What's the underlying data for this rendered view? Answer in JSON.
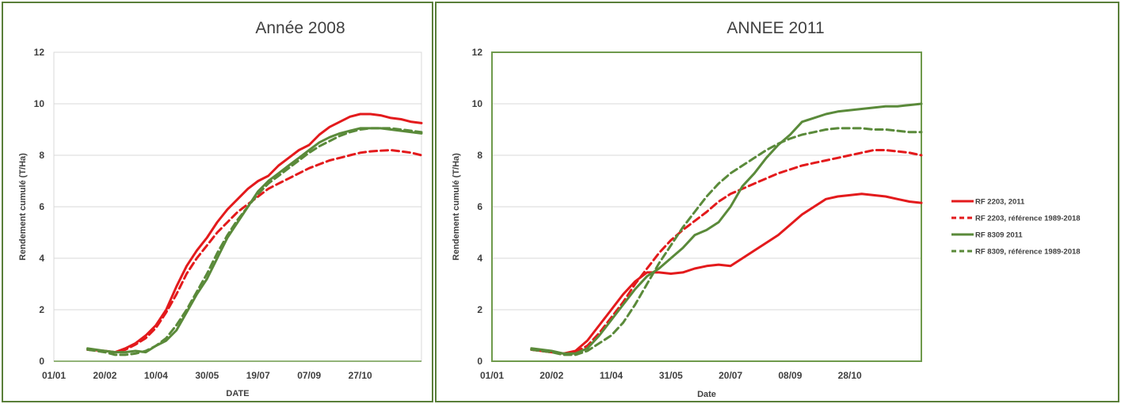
{
  "chart_data": [
    {
      "type": "line",
      "title": "Année 2008",
      "xlabel": "DATE",
      "ylabel": "Rendement cumulé (T/Ha)",
      "ylim": [
        0,
        12
      ],
      "yticks": [
        "0",
        "2",
        "4",
        "6",
        "8",
        "10",
        "12"
      ],
      "x_tick_labels": [
        "01/01",
        "20/02",
        "10/04",
        "30/05",
        "19/07",
        "07/09",
        "27/10"
      ],
      "x_tick_days": [
        0,
        50,
        100,
        150,
        200,
        250,
        300
      ],
      "xlim_days": [
        0,
        360
      ],
      "grid": true,
      "series": [
        {
          "color": "#e31a1c",
          "dash": false,
          "x": [
            33,
            50,
            60,
            70,
            80,
            90,
            100,
            110,
            120,
            130,
            140,
            150,
            160,
            170,
            180,
            190,
            200,
            210,
            220,
            230,
            240,
            250,
            260,
            270,
            280,
            290,
            300,
            310,
            320,
            330,
            340,
            350,
            360
          ],
          "y": [
            0.45,
            0.4,
            0.35,
            0.5,
            0.7,
            1.0,
            1.4,
            2.0,
            2.9,
            3.7,
            4.3,
            4.8,
            5.4,
            5.9,
            6.3,
            6.7,
            7.0,
            7.2,
            7.6,
            7.9,
            8.2,
            8.4,
            8.8,
            9.1,
            9.3,
            9.5,
            9.6,
            9.6,
            9.55,
            9.45,
            9.4,
            9.3,
            9.25
          ]
        },
        {
          "color": "#e31a1c",
          "dash": true,
          "x": [
            33,
            50,
            60,
            70,
            80,
            90,
            100,
            110,
            120,
            130,
            140,
            150,
            160,
            170,
            180,
            190,
            200,
            210,
            220,
            230,
            240,
            250,
            260,
            270,
            280,
            290,
            300,
            310,
            320,
            330,
            340,
            350,
            360
          ],
          "y": [
            0.45,
            0.38,
            0.35,
            0.45,
            0.65,
            0.9,
            1.3,
            1.9,
            2.6,
            3.4,
            4.0,
            4.5,
            5.0,
            5.4,
            5.8,
            6.1,
            6.4,
            6.7,
            6.9,
            7.1,
            7.3,
            7.5,
            7.65,
            7.8,
            7.9,
            8.0,
            8.1,
            8.15,
            8.18,
            8.2,
            8.15,
            8.1,
            8.0
          ]
        },
        {
          "color": "#5a8a3a",
          "dash": false,
          "x": [
            33,
            50,
            60,
            70,
            80,
            90,
            100,
            110,
            120,
            130,
            140,
            150,
            160,
            170,
            180,
            190,
            200,
            210,
            220,
            230,
            240,
            250,
            260,
            270,
            280,
            290,
            300,
            310,
            320,
            330,
            340,
            350,
            360
          ],
          "y": [
            0.5,
            0.4,
            0.35,
            0.35,
            0.4,
            0.35,
            0.6,
            0.8,
            1.2,
            1.9,
            2.6,
            3.2,
            4.0,
            4.8,
            5.4,
            6.0,
            6.6,
            7.0,
            7.3,
            7.6,
            7.9,
            8.2,
            8.5,
            8.7,
            8.85,
            8.95,
            9.05,
            9.05,
            9.05,
            9.0,
            8.95,
            8.9,
            8.85
          ]
        },
        {
          "color": "#5a8a3a",
          "dash": true,
          "x": [
            33,
            50,
            60,
            70,
            80,
            90,
            100,
            110,
            120,
            130,
            140,
            150,
            160,
            170,
            180,
            190,
            200,
            210,
            220,
            230,
            240,
            250,
            260,
            270,
            280,
            290,
            300,
            310,
            320,
            330,
            340,
            350,
            360
          ],
          "y": [
            0.45,
            0.35,
            0.25,
            0.25,
            0.3,
            0.4,
            0.6,
            0.9,
            1.4,
            2.0,
            2.7,
            3.4,
            4.2,
            4.9,
            5.5,
            6.0,
            6.5,
            6.9,
            7.2,
            7.5,
            7.8,
            8.1,
            8.35,
            8.55,
            8.75,
            8.9,
            9.0,
            9.05,
            9.05,
            9.05,
            9.0,
            8.95,
            8.9
          ]
        }
      ]
    },
    {
      "type": "line",
      "title": "ANNEE 2011",
      "xlabel": "Date",
      "ylabel": "Rendement cumulé (T/Ha)",
      "ylim": [
        0,
        12
      ],
      "yticks": [
        "0",
        "2",
        "4",
        "6",
        "8",
        "10",
        "12"
      ],
      "x_tick_labels": [
        "01/01",
        "20/02",
        "11/04",
        "31/05",
        "20/07",
        "08/09",
        "28/10"
      ],
      "x_tick_days": [
        0,
        50,
        100,
        150,
        200,
        250,
        300
      ],
      "xlim_days": [
        0,
        360
      ],
      "grid": true,
      "legend_position": "right",
      "series": [
        {
          "name": "RF 2203, 2011",
          "color": "#e31a1c",
          "dash": false,
          "x": [
            33,
            50,
            60,
            70,
            80,
            90,
            100,
            110,
            120,
            130,
            140,
            150,
            160,
            170,
            180,
            190,
            200,
            210,
            220,
            230,
            240,
            250,
            260,
            270,
            280,
            290,
            300,
            310,
            320,
            330,
            340,
            350,
            360
          ],
          "y": [
            0.45,
            0.35,
            0.3,
            0.4,
            0.8,
            1.4,
            2.0,
            2.6,
            3.1,
            3.45,
            3.45,
            3.4,
            3.45,
            3.6,
            3.7,
            3.75,
            3.7,
            4.0,
            4.3,
            4.6,
            4.9,
            5.3,
            5.7,
            6.0,
            6.3,
            6.4,
            6.45,
            6.5,
            6.45,
            6.4,
            6.3,
            6.2,
            6.15
          ]
        },
        {
          "name": "RF 2203,  référence 1989-2018",
          "color": "#e31a1c",
          "dash": true,
          "x": [
            33,
            50,
            60,
            70,
            80,
            90,
            100,
            110,
            120,
            130,
            140,
            150,
            160,
            170,
            180,
            190,
            200,
            210,
            220,
            230,
            240,
            250,
            260,
            270,
            280,
            290,
            300,
            310,
            320,
            330,
            340,
            350,
            360
          ],
          "y": [
            0.45,
            0.35,
            0.3,
            0.35,
            0.6,
            1.1,
            1.7,
            2.3,
            3.0,
            3.6,
            4.2,
            4.7,
            5.1,
            5.45,
            5.8,
            6.2,
            6.5,
            6.7,
            6.9,
            7.1,
            7.3,
            7.45,
            7.6,
            7.7,
            7.8,
            7.9,
            8.0,
            8.1,
            8.2,
            8.2,
            8.15,
            8.1,
            8.0
          ]
        },
        {
          "name": "RF 8309 2011",
          "color": "#5a8a3a",
          "dash": false,
          "x": [
            33,
            50,
            60,
            70,
            80,
            90,
            100,
            110,
            120,
            130,
            140,
            150,
            160,
            170,
            180,
            190,
            200,
            210,
            220,
            230,
            240,
            250,
            260,
            270,
            280,
            290,
            300,
            310,
            320,
            330,
            340,
            350,
            360
          ],
          "y": [
            0.5,
            0.4,
            0.3,
            0.3,
            0.5,
            1.0,
            1.6,
            2.2,
            2.8,
            3.3,
            3.6,
            4.0,
            4.4,
            4.9,
            5.1,
            5.4,
            6.0,
            6.8,
            7.3,
            7.9,
            8.4,
            8.8,
            9.3,
            9.45,
            9.6,
            9.7,
            9.75,
            9.8,
            9.85,
            9.9,
            9.9,
            9.95,
            10.0
          ]
        },
        {
          "name": "RF 8309, référence 1989-2018",
          "color": "#5a8a3a",
          "dash": true,
          "x": [
            33,
            50,
            60,
            70,
            80,
            90,
            100,
            110,
            120,
            130,
            140,
            150,
            160,
            170,
            180,
            190,
            200,
            210,
            220,
            230,
            240,
            250,
            260,
            270,
            280,
            290,
            300,
            310,
            320,
            330,
            340,
            350,
            360
          ],
          "y": [
            0.45,
            0.35,
            0.25,
            0.25,
            0.4,
            0.7,
            1.0,
            1.5,
            2.2,
            3.0,
            3.8,
            4.5,
            5.2,
            5.8,
            6.4,
            6.9,
            7.3,
            7.6,
            7.9,
            8.2,
            8.45,
            8.65,
            8.8,
            8.9,
            9.0,
            9.05,
            9.05,
            9.05,
            9.0,
            9.0,
            8.95,
            8.9,
            8.9
          ]
        }
      ]
    }
  ]
}
